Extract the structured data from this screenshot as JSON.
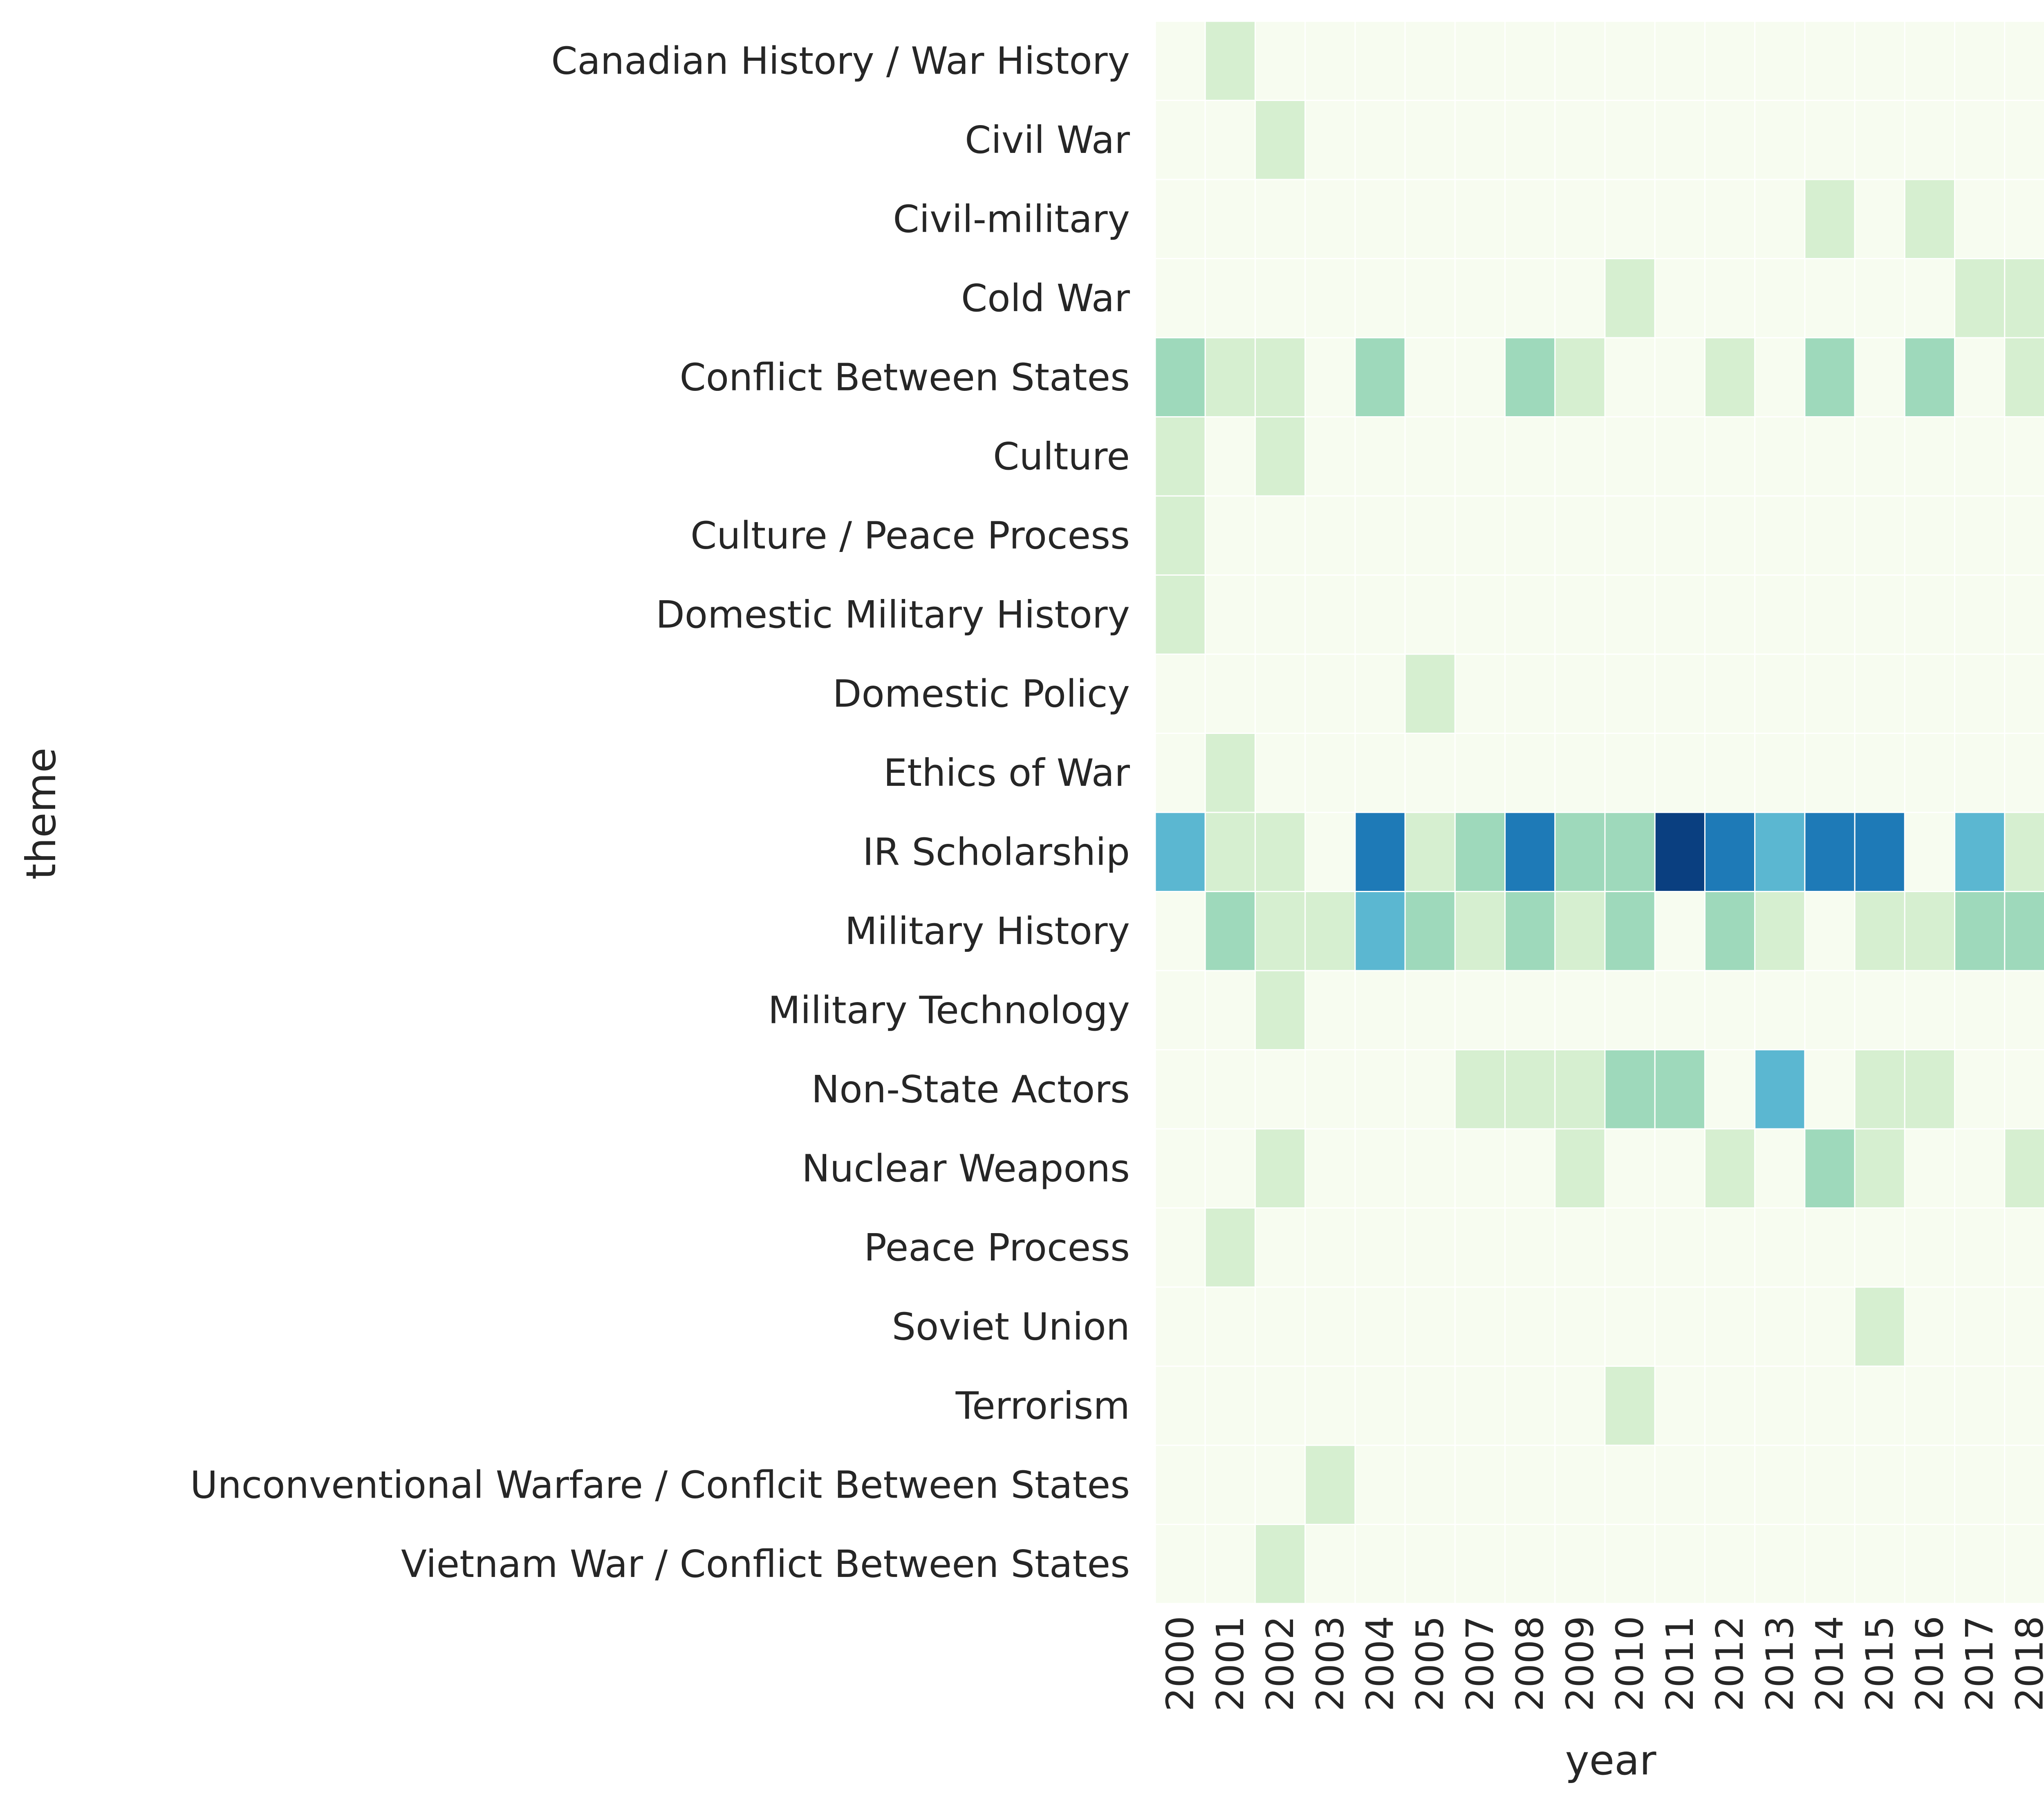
{
  "chart_data": {
    "type": "heatmap",
    "xlabel": "year",
    "ylabel": "theme",
    "x": [
      "2000",
      "2001",
      "2002",
      "2003",
      "2004",
      "2005",
      "2007",
      "2008",
      "2009",
      "2010",
      "2011",
      "2012",
      "2013",
      "2014",
      "2015",
      "2016",
      "2017",
      "2018"
    ],
    "y": [
      "Canadian History / War History",
      "Civil War",
      "Civil-military",
      "Cold War",
      "Conflict Between States",
      "Culture",
      "Culture / Peace Process",
      "Domestic Military History",
      "Domestic Policy",
      "Ethics of War",
      "IR Scholarship",
      "Military History",
      "Military Technology",
      "Non-State Actors",
      "Nuclear Weapons",
      "Peace Process",
      "Soviet Union",
      "Terrorism",
      "Unconventional Warfare / Conflcit Between States",
      "Vietnam War / Conflict Between States"
    ],
    "values": [
      [
        0,
        1,
        0,
        0,
        0,
        0,
        0,
        0,
        0,
        0,
        0,
        0,
        0,
        0,
        0,
        0,
        0,
        0
      ],
      [
        0,
        0,
        1,
        0,
        0,
        0,
        0,
        0,
        0,
        0,
        0,
        0,
        0,
        0,
        0,
        0,
        0,
        0
      ],
      [
        0,
        0,
        0,
        0,
        0,
        0,
        0,
        0,
        0,
        0,
        0,
        0,
        0,
        1,
        0,
        1,
        0,
        0
      ],
      [
        0,
        0,
        0,
        0,
        0,
        0,
        0,
        0,
        0,
        1,
        0,
        0,
        0,
        0,
        0,
        0,
        1,
        1
      ],
      [
        2,
        1,
        1,
        0,
        2,
        0,
        0,
        2,
        1,
        0,
        0,
        1,
        0,
        2,
        0,
        2,
        0,
        1
      ],
      [
        1,
        0,
        1,
        0,
        0,
        0,
        0,
        0,
        0,
        0,
        0,
        0,
        0,
        0,
        0,
        0,
        0,
        0
      ],
      [
        1,
        0,
        0,
        0,
        0,
        0,
        0,
        0,
        0,
        0,
        0,
        0,
        0,
        0,
        0,
        0,
        0,
        0
      ],
      [
        1,
        0,
        0,
        0,
        0,
        0,
        0,
        0,
        0,
        0,
        0,
        0,
        0,
        0,
        0,
        0,
        0,
        0
      ],
      [
        0,
        0,
        0,
        0,
        0,
        1,
        0,
        0,
        0,
        0,
        0,
        0,
        0,
        0,
        0,
        0,
        0,
        0
      ],
      [
        0,
        1,
        0,
        0,
        0,
        0,
        0,
        0,
        0,
        0,
        0,
        0,
        0,
        0,
        0,
        0,
        0,
        0
      ],
      [
        3,
        1,
        1,
        0,
        4,
        1,
        2,
        4,
        2,
        2,
        5,
        4,
        3,
        4,
        4,
        0,
        3,
        1
      ],
      [
        0,
        2,
        1,
        1,
        3,
        2,
        1,
        2,
        1,
        2,
        0,
        2,
        1,
        0,
        1,
        1,
        2,
        2
      ],
      [
        0,
        0,
        1,
        0,
        0,
        0,
        0,
        0,
        0,
        0,
        0,
        0,
        0,
        0,
        0,
        0,
        0,
        0
      ],
      [
        0,
        0,
        0,
        0,
        0,
        0,
        1,
        1,
        1,
        2,
        2,
        0,
        3,
        0,
        1,
        1,
        0,
        0
      ],
      [
        0,
        0,
        1,
        0,
        0,
        0,
        0,
        0,
        1,
        0,
        0,
        1,
        0,
        2,
        1,
        0,
        0,
        1
      ],
      [
        0,
        1,
        0,
        0,
        0,
        0,
        0,
        0,
        0,
        0,
        0,
        0,
        0,
        0,
        0,
        0,
        0,
        0
      ],
      [
        0,
        0,
        0,
        0,
        0,
        0,
        0,
        0,
        0,
        0,
        0,
        0,
        0,
        0,
        1,
        0,
        0,
        0
      ],
      [
        0,
        0,
        0,
        0,
        0,
        0,
        0,
        0,
        0,
        1,
        0,
        0,
        0,
        0,
        0,
        0,
        0,
        0
      ],
      [
        0,
        0,
        0,
        1,
        0,
        0,
        0,
        0,
        0,
        0,
        0,
        0,
        0,
        0,
        0,
        0,
        0,
        0
      ],
      [
        0,
        0,
        1,
        0,
        0,
        0,
        0,
        0,
        0,
        0,
        0,
        0,
        0,
        0,
        0,
        0,
        0,
        0
      ]
    ],
    "colormap": [
      "#f7fcf0",
      "#d6efd0",
      "#9ed9bb",
      "#5bb7d1",
      "#1e7ab7",
      "#0a3f80"
    ],
    "grid": true,
    "colorbar": false
  }
}
